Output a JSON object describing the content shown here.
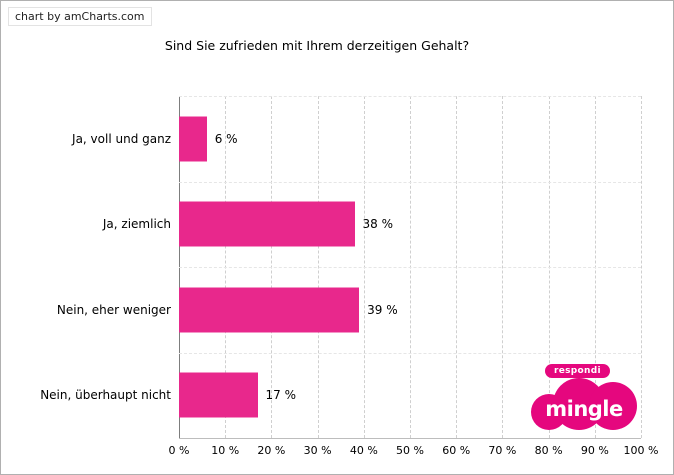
{
  "watermark": "chart by amCharts.com",
  "logo": {
    "brand_top": "respondi",
    "brand_main": "mingle",
    "color": "#e5077e"
  },
  "chart_data": {
    "type": "bar",
    "orientation": "horizontal",
    "title": "Sind Sie zufrieden mit Ihrem derzeitigen Gehalt?",
    "categories": [
      "Ja, voll und ganz",
      "Ja, ziemlich",
      "Nein, eher weniger",
      "Nein, überhaupt nicht"
    ],
    "values": [
      6,
      38,
      39,
      17
    ],
    "value_labels": [
      "6 %",
      "38 %",
      "39 %",
      "17 %"
    ],
    "x_tick_values": [
      0,
      10,
      20,
      30,
      40,
      50,
      60,
      70,
      80,
      90,
      100
    ],
    "x_tick_labels": [
      "0 %",
      "10 %",
      "20 %",
      "30 %",
      "40 %",
      "50 %",
      "60 %",
      "70 %",
      "80 %",
      "90 %",
      "100 %"
    ],
    "xlim": [
      0,
      100
    ],
    "xlabel": "",
    "ylabel": "",
    "grid": "dashed vertical gridlines at every 10%, dashed horizontal category separators",
    "legend": "none",
    "bar_color": "#e8288c"
  }
}
